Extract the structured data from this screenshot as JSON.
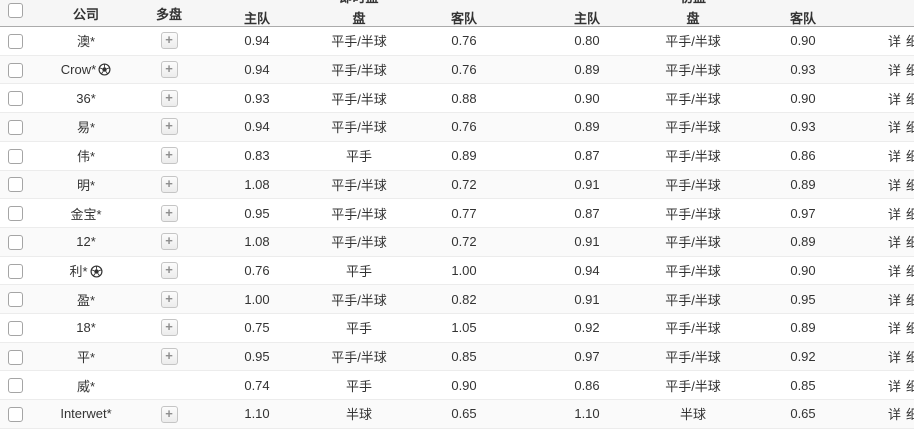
{
  "header": {
    "company": "公司",
    "multi": "多盘",
    "group1_label": "即时盘",
    "group2_label": "初盘",
    "home": "主队",
    "handicap": "盘",
    "away": "客队"
  },
  "icons": {
    "plus": "+",
    "ball": "soccer-ball"
  },
  "rows": [
    {
      "company": "澳*",
      "ball": false,
      "multi": true,
      "live": {
        "home": "0.94",
        "handicap": "平手/半球",
        "away": "0.76"
      },
      "initial": {
        "home": "0.80",
        "handicap": "平手/半球",
        "away": "0.90"
      },
      "detail": "详细"
    },
    {
      "company": "Crow*",
      "ball": true,
      "multi": true,
      "live": {
        "home": "0.94",
        "handicap": "平手/半球",
        "away": "0.76"
      },
      "initial": {
        "home": "0.89",
        "handicap": "平手/半球",
        "away": "0.93"
      },
      "detail": "详细"
    },
    {
      "company": "36*",
      "ball": false,
      "multi": true,
      "live": {
        "home": "0.93",
        "handicap": "平手/半球",
        "away": "0.88"
      },
      "initial": {
        "home": "0.90",
        "handicap": "平手/半球",
        "away": "0.90"
      },
      "detail": "详细"
    },
    {
      "company": "易*",
      "ball": false,
      "multi": true,
      "live": {
        "home": "0.94",
        "handicap": "平手/半球",
        "away": "0.76"
      },
      "initial": {
        "home": "0.89",
        "handicap": "平手/半球",
        "away": "0.93"
      },
      "detail": "详细"
    },
    {
      "company": "伟*",
      "ball": false,
      "multi": true,
      "live": {
        "home": "0.83",
        "handicap": "平手",
        "away": "0.89"
      },
      "initial": {
        "home": "0.87",
        "handicap": "平手/半球",
        "away": "0.86"
      },
      "detail": "详细"
    },
    {
      "company": "明*",
      "ball": false,
      "multi": true,
      "live": {
        "home": "1.08",
        "handicap": "平手/半球",
        "away": "0.72"
      },
      "initial": {
        "home": "0.91",
        "handicap": "平手/半球",
        "away": "0.89"
      },
      "detail": "详细"
    },
    {
      "company": "金宝*",
      "ball": false,
      "multi": true,
      "live": {
        "home": "0.95",
        "handicap": "平手/半球",
        "away": "0.77"
      },
      "initial": {
        "home": "0.87",
        "handicap": "平手/半球",
        "away": "0.97"
      },
      "detail": "详细"
    },
    {
      "company": "12*",
      "ball": false,
      "multi": true,
      "live": {
        "home": "1.08",
        "handicap": "平手/半球",
        "away": "0.72"
      },
      "initial": {
        "home": "0.91",
        "handicap": "平手/半球",
        "away": "0.89"
      },
      "detail": "详细"
    },
    {
      "company": "利*",
      "ball": true,
      "multi": true,
      "live": {
        "home": "0.76",
        "handicap": "平手",
        "away": "1.00"
      },
      "initial": {
        "home": "0.94",
        "handicap": "平手/半球",
        "away": "0.90"
      },
      "detail": "详细"
    },
    {
      "company": "盈*",
      "ball": false,
      "multi": true,
      "live": {
        "home": "1.00",
        "handicap": "平手/半球",
        "away": "0.82"
      },
      "initial": {
        "home": "0.91",
        "handicap": "平手/半球",
        "away": "0.95"
      },
      "detail": "详细"
    },
    {
      "company": "18*",
      "ball": false,
      "multi": true,
      "live": {
        "home": "0.75",
        "handicap": "平手",
        "away": "1.05"
      },
      "initial": {
        "home": "0.92",
        "handicap": "平手/半球",
        "away": "0.89"
      },
      "detail": "详细"
    },
    {
      "company": "平*",
      "ball": false,
      "multi": true,
      "live": {
        "home": "0.95",
        "handicap": "平手/半球",
        "away": "0.85"
      },
      "initial": {
        "home": "0.97",
        "handicap": "平手/半球",
        "away": "0.92"
      },
      "detail": "详细"
    },
    {
      "company": "威*",
      "ball": false,
      "multi": false,
      "live": {
        "home": "0.74",
        "handicap": "平手",
        "away": "0.90"
      },
      "initial": {
        "home": "0.86",
        "handicap": "平手/半球",
        "away": "0.85"
      },
      "detail": "详细"
    },
    {
      "company": "Interwet*",
      "ball": false,
      "multi": true,
      "live": {
        "home": "1.10",
        "handicap": "半球",
        "away": "0.65"
      },
      "initial": {
        "home": "1.10",
        "handicap": "半球",
        "away": "0.65"
      },
      "detail": "详细"
    }
  ]
}
